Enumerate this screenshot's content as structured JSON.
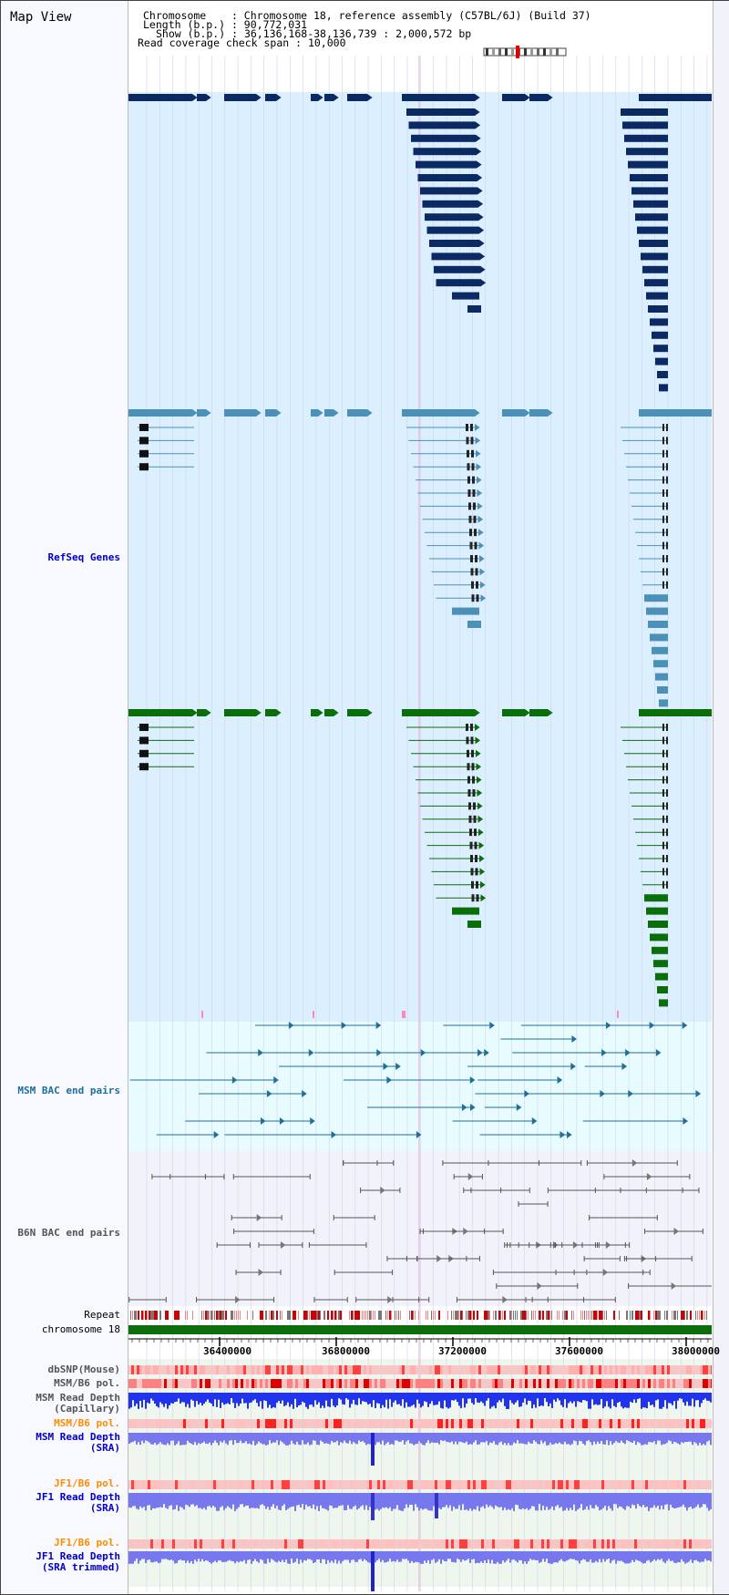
{
  "app": {
    "title": "Map View"
  },
  "header": {
    "chromosome_key": "Chromosome",
    "chromosome_value": ": Chromosome 18, reference assembly (C57BL/6J) (Build 37)",
    "length_key": "Length (b.p.)",
    "length_value": ": 90,772,031",
    "show_key": "Show (b.p.)",
    "show_value": ": 36,136,168-38,136,739 : 2,000,572 bp",
    "coverage_key": "Read coverage check span",
    "coverage_value": ": 10,000"
  },
  "tracks": {
    "refseq": {
      "label": "RefSeq Genes"
    },
    "msm_bac": {
      "label": "MSM BAC end pairs"
    },
    "b6n_bac": {
      "label": "B6N BAC end pairs"
    },
    "repeat": {
      "label": "Repeat"
    },
    "chrom": {
      "label": "chromosome 18"
    },
    "dbsnp": {
      "label": "dbSNP(Mouse)"
    },
    "msm_b6_pol_1": {
      "label": "MSM/B6 pol."
    },
    "msm_depth_cap": {
      "label": "MSM Read Depth\n(Capillary)"
    },
    "msm_b6_pol_2": {
      "label": "MSM/B6 pol."
    },
    "msm_depth_sra": {
      "label": "MSM Read Depth\n(SRA)"
    },
    "jf1_b6_pol_1": {
      "label": "JF1/B6 pol."
    },
    "jf1_depth_sra": {
      "label": "JF1 Read Depth\n(SRA)"
    },
    "jf1_b6_pol_2": {
      "label": "JF1/B6 pol."
    },
    "jf1_depth_trim": {
      "label": "JF1 Read Depth\n(SRA trimmed)"
    }
  },
  "axis": {
    "ticks": [
      "36400000",
      "36800000",
      "37200000",
      "37600000",
      "38000000"
    ]
  },
  "colors": {
    "refseq_dark": "#0b2a63",
    "refseq_mid": "#4a90b8",
    "refseq_green": "#0a6e0a",
    "panel_bg": "#dcefff",
    "msm_bg": "#e8fbff",
    "b6n_bg": "#f2f2fb",
    "label_blue": "#0000c8",
    "label_msm": "#1f6f99",
    "label_gray": "#555555",
    "label_orange": "#ff8c00",
    "chrom_green": "#0b6e0b",
    "depth_blue": "#2233ee",
    "depth_light": "#7777ee"
  }
}
